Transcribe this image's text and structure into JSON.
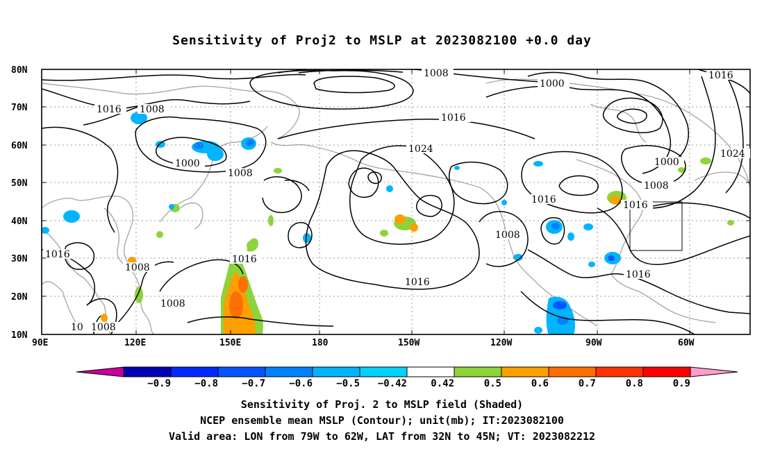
{
  "title": "Sensitivity of Proj2 to MSLP at 2023082100 +0.0 day",
  "map": {
    "lat_labels": [
      "80N",
      "70N",
      "60N",
      "50N",
      "40N",
      "30N",
      "20N",
      "10N"
    ],
    "lon_labels": [
      "90E",
      "120E",
      "150E",
      "180",
      "150W",
      "120W",
      "90W",
      "60W"
    ],
    "contour_labels": [
      {
        "text": "1008"
      },
      {
        "text": "1016"
      },
      {
        "text": "1016"
      },
      {
        "text": "1008"
      },
      {
        "text": "1000"
      },
      {
        "text": "1008"
      },
      {
        "text": "1024"
      },
      {
        "text": "1016"
      },
      {
        "text": "1000"
      },
      {
        "text": "1000"
      },
      {
        "text": "1008"
      },
      {
        "text": "1016"
      },
      {
        "text": "1024"
      },
      {
        "text": "1016"
      },
      {
        "text": "1016"
      },
      {
        "text": "1016"
      },
      {
        "text": "1008"
      },
      {
        "text": "1016"
      },
      {
        "text": "1008"
      },
      {
        "text": "1008"
      },
      {
        "text": "1016"
      },
      {
        "text": "1016"
      },
      {
        "text": "10"
      },
      {
        "text": "1008"
      }
    ],
    "valid_area": {
      "lon_from": "79W",
      "lon_to": "62W",
      "lat_from": "32N",
      "lat_to": "45N"
    }
  },
  "colorbar": {
    "labels": [
      "−0.9",
      "−0.8",
      "−0.7",
      "−0.6",
      "−0.5",
      "−0.42",
      "0.42",
      "0.5",
      "0.6",
      "0.7",
      "0.8",
      "0.9"
    ],
    "colors": [
      "#0000b4",
      "#0028ff",
      "#0055ff",
      "#0082ff",
      "#00b4ff",
      "#00d2ff",
      "#ffffff",
      "#8dd43a",
      "#ffa000",
      "#ff6e00",
      "#ff3200",
      "#ff0000"
    ],
    "left_arrow_color": "#c8009a",
    "right_arrow_color": "#ff9ec8"
  },
  "captions": {
    "line1": "Sensitivity of Proj. 2 to MSLP field (Shaded)",
    "line2": "NCEP ensemble mean MSLP (Contour); unit(mb); IT:2023082100",
    "line3": "Valid area: LON from 79W to 62W, LAT from 32N to 45N; VT: 2023082212"
  }
}
